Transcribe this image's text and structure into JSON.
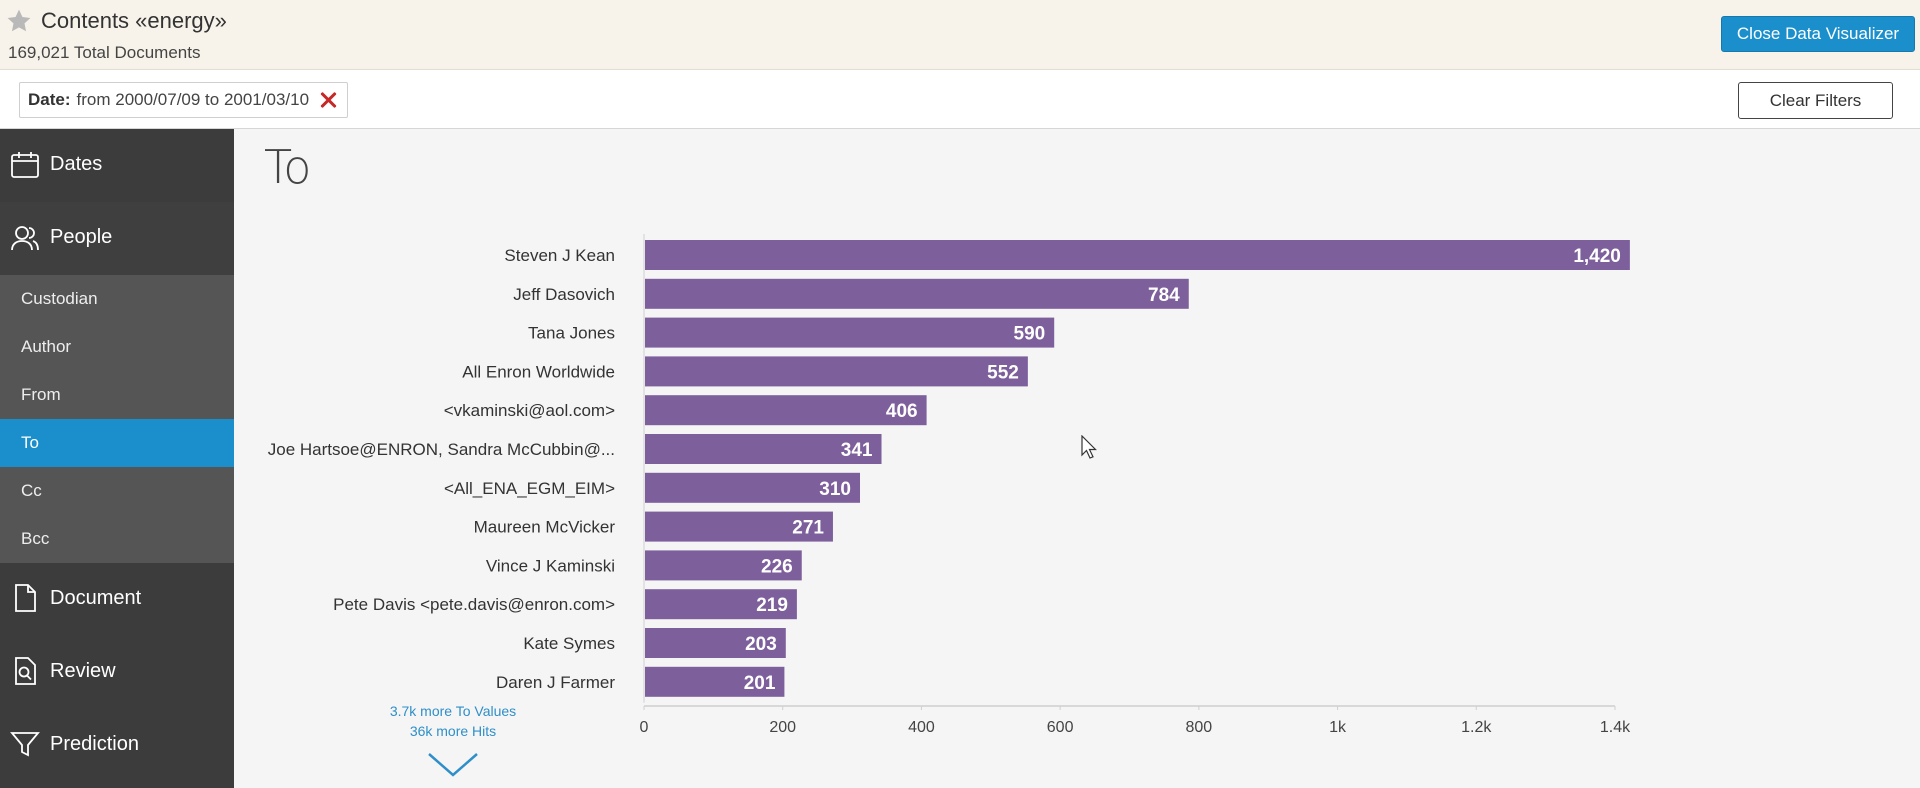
{
  "header": {
    "title": "Contents «energy»",
    "subtitle": "169,021 Total Documents",
    "close_label": "Close Data Visualizer",
    "star_icon": "star-icon"
  },
  "filter_bar": {
    "filter_label": "Date:",
    "filter_value": "from 2000/07/09 to 2001/03/10",
    "clear_label": "Clear Filters"
  },
  "sidebar": {
    "dates": "Dates",
    "people": "People",
    "sub_items": [
      "Custodian",
      "Author",
      "From",
      "To",
      "Cc",
      "Bcc"
    ],
    "active_sub": "To",
    "document": "Document",
    "review": "Review",
    "prediction": "Prediction"
  },
  "main": {
    "heading": "To",
    "more_values": "3.7k more To Values",
    "more_hits": "36k more Hits"
  },
  "colors": {
    "bar": "#7d5f9c",
    "accent": "#1a8fcb",
    "sidebar": "#3c3c3c",
    "sub_sidebar": "#555555"
  },
  "chart_data": {
    "type": "bar",
    "orientation": "horizontal",
    "categories": [
      "Steven J Kean",
      "Jeff Dasovich",
      "Tana Jones",
      "All Enron Worldwide",
      "<vkaminski@aol.com>",
      "Joe Hartsoe@ENRON, Sandra McCubbin@...",
      "<All_ENA_EGM_EIM>",
      "Maureen McVicker",
      "Vince J Kaminski",
      "Pete Davis <pete.davis@enron.com>",
      "Kate Symes",
      "Daren J Farmer"
    ],
    "values": [
      1420,
      784,
      590,
      552,
      406,
      341,
      310,
      271,
      226,
      219,
      203,
      201
    ],
    "value_labels": [
      "1,420",
      "784",
      "590",
      "552",
      "406",
      "341",
      "310",
      "271",
      "226",
      "219",
      "203",
      "201"
    ],
    "xlim": [
      0,
      1400
    ],
    "xticks": [
      0,
      200,
      400,
      600,
      800,
      1000,
      1200,
      1400
    ],
    "xtick_labels": [
      "0",
      "200",
      "400",
      "600",
      "800",
      "1k",
      "1.2k",
      "1.4k"
    ],
    "grid": false
  }
}
